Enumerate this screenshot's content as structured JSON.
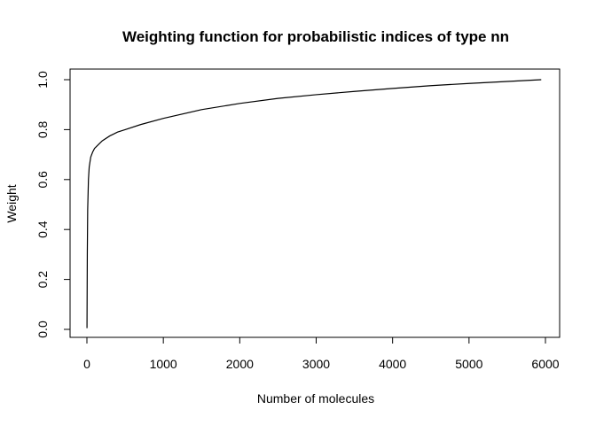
{
  "chart_data": {
    "type": "line",
    "title": "Weighting function for probabilistic indices of type nn",
    "xlabel": "Number of molecules",
    "ylabel": "Weight",
    "xlim": [
      0,
      6000
    ],
    "ylim": [
      0,
      1.0
    ],
    "x_ticks": [
      0,
      1000,
      2000,
      3000,
      4000,
      5000,
      6000
    ],
    "x_tick_labels": [
      "0",
      "1000",
      "2000",
      "3000",
      "4000",
      "5000",
      "6000"
    ],
    "y_ticks": [
      0.0,
      0.2,
      0.4,
      0.6,
      0.8,
      1.0
    ],
    "y_tick_labels": [
      "0.0",
      "0.2",
      "0.4",
      "0.6",
      "0.8",
      "1.0"
    ],
    "grid": false,
    "line_color": "#000000",
    "series": [
      {
        "x": [
          1,
          5,
          10,
          20,
          30,
          50,
          75,
          100,
          150,
          200,
          300,
          400,
          500,
          700,
          1000,
          1500,
          2000,
          2500,
          3000,
          3500,
          4000,
          4500,
          5000,
          5500,
          5945
        ],
        "y": [
          0.005,
          0.3,
          0.48,
          0.6,
          0.65,
          0.69,
          0.71,
          0.725,
          0.74,
          0.755,
          0.775,
          0.79,
          0.8,
          0.82,
          0.845,
          0.88,
          0.905,
          0.925,
          0.94,
          0.953,
          0.965,
          0.976,
          0.985,
          0.993,
          1.0
        ]
      }
    ]
  }
}
